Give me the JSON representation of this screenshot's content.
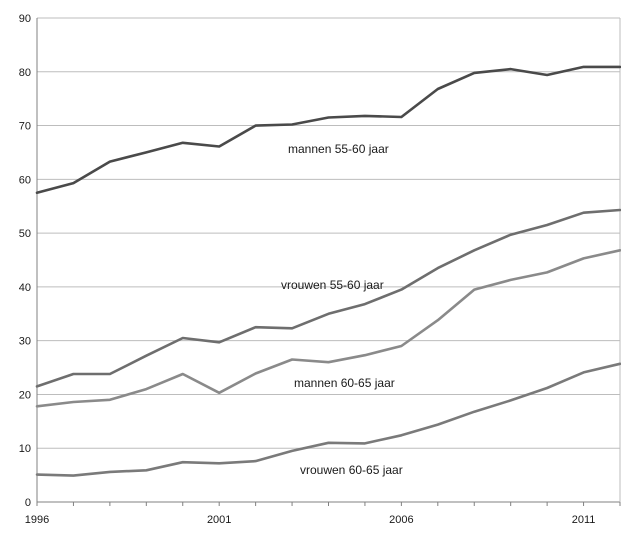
{
  "chart_data": {
    "type": "line",
    "x": [
      1996,
      1997,
      1998,
      1999,
      2000,
      2001,
      2002,
      2003,
      2004,
      2005,
      2006,
      2007,
      2008,
      2009,
      2010,
      2011,
      2012
    ],
    "xticks": [
      1996,
      2001,
      2006,
      2011
    ],
    "xlim": [
      1996,
      2012
    ],
    "ylim": [
      0,
      90
    ],
    "yticks": [
      0,
      10,
      20,
      30,
      40,
      50,
      60,
      70,
      80,
      90
    ],
    "grid": "horizontal",
    "legend": "inline labels",
    "series": [
      {
        "name": "mannen 55-60 jaar",
        "color": "#4a4a4a",
        "values": [
          57.5,
          59.3,
          63.3,
          65.0,
          66.8,
          66.1,
          70.0,
          70.2,
          71.5,
          71.8,
          71.6,
          76.8,
          79.8,
          80.5,
          79.4,
          80.9,
          80.9
        ]
      },
      {
        "name": "vrouwen 55-60 jaar",
        "color": "#6e6e6e",
        "values": [
          21.5,
          23.8,
          23.8,
          27.2,
          30.5,
          29.7,
          32.5,
          32.3,
          35.0,
          36.8,
          39.5,
          43.5,
          46.8,
          49.7,
          51.5,
          53.8,
          54.3
        ]
      },
      {
        "name": "mannen 60-65 jaar",
        "color": "#8a8a8a",
        "values": [
          17.8,
          18.6,
          19.0,
          21.0,
          23.8,
          20.3,
          23.9,
          26.5,
          26.0,
          27.3,
          29.0,
          33.8,
          39.5,
          41.3,
          42.7,
          45.3,
          46.8
        ]
      },
      {
        "name": "vrouwen 60-65 jaar",
        "color": "#7a7a7a",
        "values": [
          5.1,
          4.9,
          5.6,
          5.9,
          7.4,
          7.2,
          7.6,
          9.5,
          11.0,
          10.9,
          12.4,
          14.4,
          16.8,
          18.9,
          21.2,
          24.1,
          25.7
        ]
      }
    ]
  }
}
